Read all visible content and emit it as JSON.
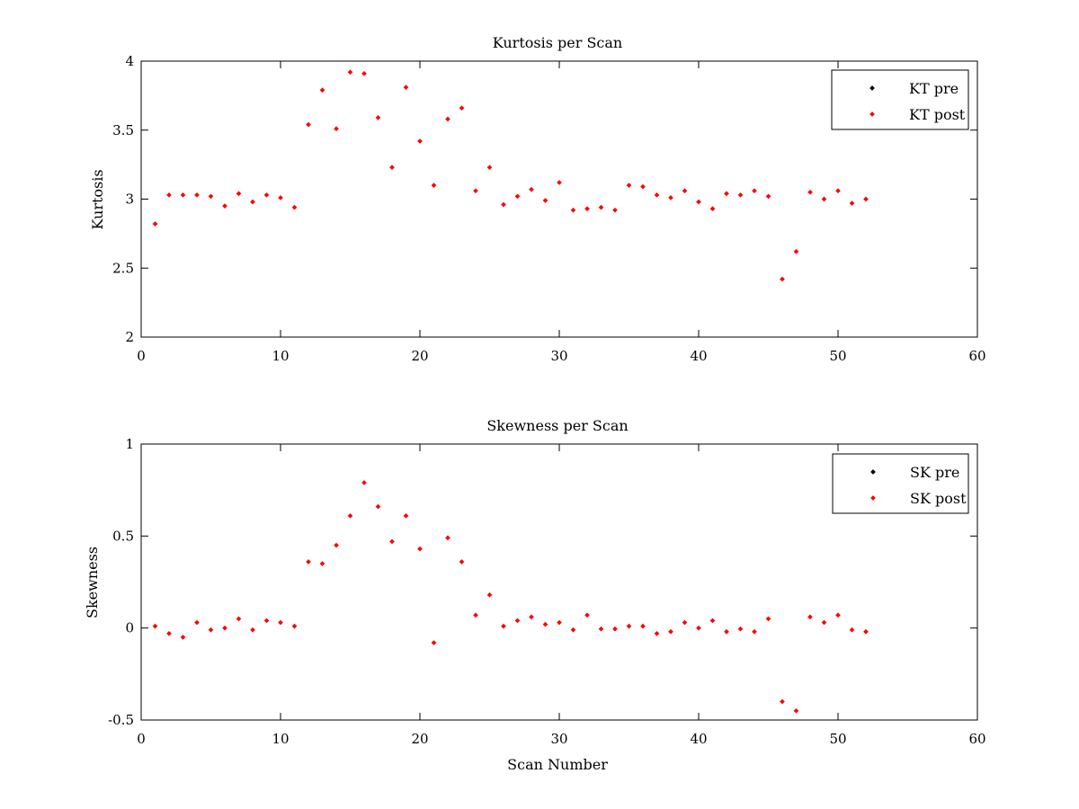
{
  "colors": {
    "pre": "#000000",
    "post": "#ff0000",
    "axis": "#000000",
    "background": "#ffffff"
  },
  "chart_data": [
    {
      "type": "scatter",
      "title": "Kurtosis per Scan",
      "xlabel": "",
      "ylabel": "Kurtosis",
      "xlim": [
        0,
        60
      ],
      "ylim": [
        2,
        4
      ],
      "xticks": [
        "0",
        "10",
        "20",
        "30",
        "40",
        "50",
        "60"
      ],
      "yticks": [
        "2",
        "2.5",
        "3",
        "3.5",
        "4"
      ],
      "grid": false,
      "legend_position": "top-right",
      "series": [
        {
          "name": "KT pre",
          "color": "#000000",
          "x": [],
          "y": []
        },
        {
          "name": "KT post",
          "color": "#ff0000",
          "x": [
            1,
            2,
            3,
            4,
            5,
            6,
            7,
            8,
            9,
            10,
            11,
            12,
            13,
            14,
            15,
            16,
            17,
            18,
            19,
            20,
            21,
            22,
            23,
            24,
            25,
            26,
            27,
            28,
            29,
            30,
            31,
            32,
            33,
            34,
            35,
            36,
            37,
            38,
            39,
            40,
            41,
            42,
            43,
            44,
            45,
            46,
            47,
            48,
            49,
            50,
            51,
            52
          ],
          "y": [
            2.82,
            3.03,
            3.03,
            3.03,
            3.02,
            2.95,
            3.04,
            2.98,
            3.03,
            3.01,
            2.94,
            3.54,
            3.79,
            3.51,
            3.92,
            3.91,
            3.59,
            3.23,
            3.81,
            3.42,
            3.1,
            3.58,
            3.66,
            3.06,
            3.23,
            2.96,
            3.02,
            3.07,
            2.99,
            3.12,
            2.92,
            2.93,
            2.94,
            2.92,
            3.1,
            3.09,
            3.03,
            3.01,
            3.06,
            2.98,
            2.93,
            3.04,
            3.03,
            3.06,
            3.02,
            2.42,
            2.62,
            3.05,
            3.0,
            3.06,
            2.97,
            3.0
          ]
        }
      ]
    },
    {
      "type": "scatter",
      "title": "Skewness per Scan",
      "xlabel": "Scan Number",
      "ylabel": "Skewness",
      "xlim": [
        0,
        60
      ],
      "ylim": [
        -0.5,
        1
      ],
      "xticks": [
        "0",
        "10",
        "20",
        "30",
        "40",
        "50",
        "60"
      ],
      "yticks": [
        "-0.5",
        "0",
        "0.5",
        "1"
      ],
      "grid": false,
      "legend_position": "top-right",
      "series": [
        {
          "name": "SK pre",
          "color": "#000000",
          "x": [],
          "y": []
        },
        {
          "name": "SK post",
          "color": "#ff0000",
          "x": [
            1,
            2,
            3,
            4,
            5,
            6,
            7,
            8,
            9,
            10,
            11,
            12,
            13,
            14,
            15,
            16,
            17,
            18,
            19,
            20,
            21,
            22,
            23,
            24,
            25,
            26,
            27,
            28,
            29,
            30,
            31,
            32,
            33,
            34,
            35,
            36,
            37,
            38,
            39,
            40,
            41,
            42,
            43,
            44,
            45,
            46,
            47,
            48,
            49,
            50,
            51,
            52
          ],
          "y": [
            0.01,
            -0.03,
            -0.05,
            0.03,
            -0.01,
            0.0,
            0.05,
            -0.01,
            0.04,
            0.03,
            0.01,
            0.36,
            0.35,
            0.45,
            0.61,
            0.79,
            0.66,
            0.47,
            0.61,
            0.43,
            -0.08,
            0.49,
            0.36,
            0.07,
            0.18,
            0.01,
            0.04,
            0.06,
            0.02,
            0.03,
            -0.01,
            0.07,
            -0.005,
            -0.005,
            0.01,
            0.01,
            -0.03,
            -0.02,
            0.03,
            0.0,
            0.04,
            -0.02,
            -0.005,
            -0.02,
            0.05,
            -0.4,
            -0.45,
            0.06,
            0.03,
            0.07,
            -0.01,
            -0.02
          ]
        }
      ]
    }
  ]
}
